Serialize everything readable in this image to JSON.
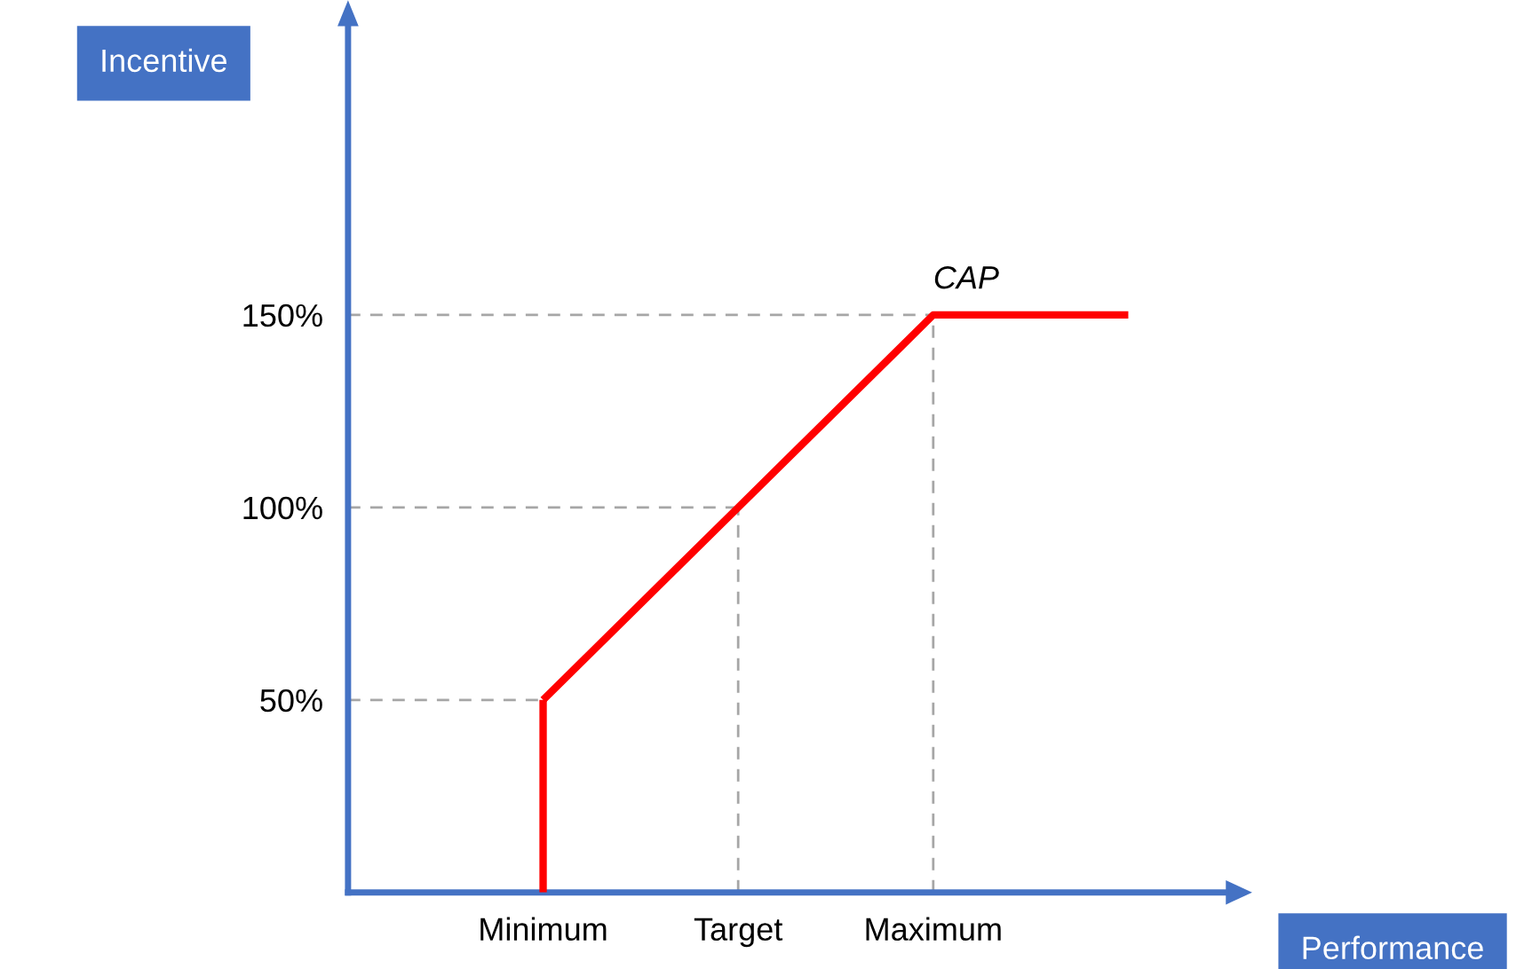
{
  "chart_data": {
    "type": "line",
    "xlabel": "Performance",
    "ylabel": "Incentive",
    "categories": [
      "Minimum",
      "Target",
      "Maximum",
      null
    ],
    "series": [
      {
        "color": "#ff0000",
        "values": [
          50,
          100,
          150,
          150
        ]
      },
      {
        "color": "#ff0000",
        "x": [
          "Minimum",
          "Minimum"
        ],
        "values": [
          0,
          50
        ]
      }
    ],
    "ylim": [
      0,
      225
    ],
    "yticks": [
      {
        "value": 50,
        "label": "50%"
      },
      {
        "value": 100,
        "label": "100%"
      },
      {
        "value": 150,
        "label": "150%"
      }
    ],
    "ref_lines": [
      {
        "axis": "y",
        "value": 50,
        "color": "#a6a6a6",
        "line_style": "dashed"
      },
      {
        "axis": "y",
        "value": 100,
        "color": "#a6a6a6",
        "line_style": "dashed"
      },
      {
        "axis": "y",
        "value": 150,
        "color": "#a6a6a6",
        "line_style": "dashed"
      },
      {
        "axis": "x",
        "value": "Target",
        "color": "#a6a6a6",
        "line_style": "dashed"
      },
      {
        "axis": "x",
        "value": "Maximum",
        "color": "#a6a6a6",
        "line_style": "dashed"
      }
    ],
    "annotations": [
      {
        "text": "CAP",
        "x": "Maximum",
        "y": 150
      }
    ],
    "grid": false,
    "legend": false
  }
}
